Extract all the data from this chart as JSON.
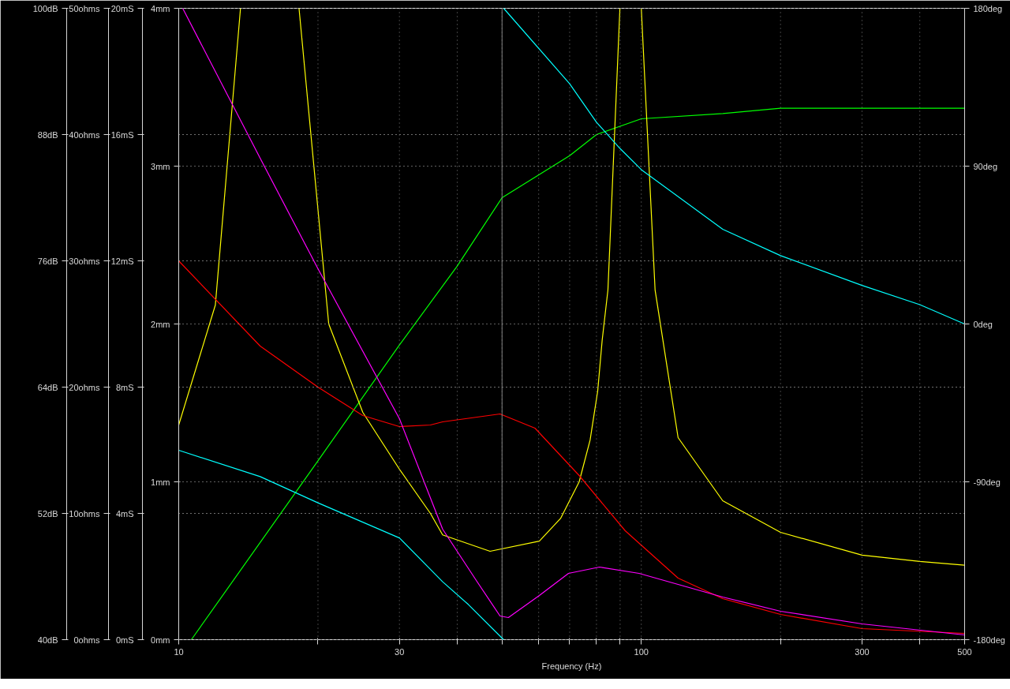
{
  "chart_data": [
    {
      "type": "line",
      "xlabel": "Frequency (Hz)",
      "log": "x",
      "grid": true,
      "marker": "none",
      "line_style": "solid",
      "xlim": [
        10,
        500
      ],
      "xticks": [
        10,
        {
          "value": 20,
          "label": null
        },
        30,
        {
          "value": 40,
          "label": null
        },
        {
          "value": 50,
          "label": null
        },
        {
          "value": 60,
          "label": null
        },
        {
          "value": 70,
          "label": null
        },
        {
          "value": 80,
          "label": null
        },
        {
          "value": 90,
          "label": null
        },
        100,
        {
          "value": 200,
          "label": null
        },
        300,
        {
          "value": 400,
          "label": null
        },
        500
      ],
      "ylim": [
        40,
        100
      ],
      "yticks": [
        {
          "value": 40,
          "label": "40dB"
        },
        {
          "value": 52,
          "label": "52dB"
        },
        {
          "value": 64,
          "label": "64dB"
        },
        {
          "value": 76,
          "label": "76dB"
        },
        {
          "value": 88,
          "label": "88dB"
        },
        {
          "value": 100,
          "label": "100dB"
        }
      ],
      "y2lim": [
        0,
        50
      ],
      "y2ticks": [
        {
          "value": 0,
          "label": "0ohms"
        },
        {
          "value": 10,
          "label": "10ohms"
        },
        {
          "value": 20,
          "label": "20ohms"
        },
        {
          "value": 30,
          "label": "30ohms"
        },
        {
          "value": 40,
          "label": "40ohms"
        },
        {
          "value": 50,
          "label": "50ohms"
        }
      ],
      "y3lim": [
        0,
        20
      ],
      "y3ticks": [
        {
          "value": 0,
          "label": "0mS"
        },
        {
          "value": 4,
          "label": "4mS"
        },
        {
          "value": 8,
          "label": "8mS"
        },
        {
          "value": 12,
          "label": "12mS"
        },
        {
          "value": 16,
          "label": "16mS"
        },
        {
          "value": 20,
          "label": "20mS"
        }
      ],
      "ref_lines": [
        {
          "axis": "x",
          "value": 50,
          "color": "#808080"
        }
      ],
      "series": [
        {
          "color": "#00ff00",
          "x": [
            10.65,
            20,
            30,
            40,
            50,
            70,
            80,
            100,
            150,
            200,
            300,
            500
          ],
          "values": [
            40,
            57,
            68,
            75.5,
            82,
            86,
            88,
            89.5,
            90,
            90.5,
            90.5,
            90.5
          ]
        },
        {
          "color": "#ffff00",
          "axis": "y2",
          "x": [
            10,
            12,
            13.6,
            15.5,
            18.2,
            21.1,
            25,
            30,
            35,
            37.2,
            47.1,
            60.2,
            66.9,
            73.4,
            77.5,
            80.5,
            82.3,
            84.7,
            89.9,
            95,
            100,
            107.1,
            120.1,
            150,
            200,
            300,
            400,
            500
          ],
          "values": [
            17,
            26.5,
            50,
            null,
            50,
            25,
            18,
            13.5,
            10,
            8.3,
            7,
            7.8,
            9.6,
            12.5,
            15.8,
            19.7,
            23.7,
            27.7,
            50,
            null,
            50,
            27.7,
            16,
            11,
            8.5,
            6.7,
            6.2,
            5.9
          ]
        },
        {
          "color": "#ff0000",
          "axis": "y3",
          "x": [
            10,
            15,
            20,
            25,
            30,
            35,
            37.2,
            49.5,
            58.9,
            73.4,
            92.3,
            120.1,
            150,
            200,
            300,
            500
          ],
          "values": [
            12,
            9.3,
            8,
            7.1,
            6.75,
            6.8,
            6.9,
            7.15,
            6.7,
            5.2,
            3.45,
            1.95,
            1.3,
            0.8,
            0.35,
            0.2
          ]
        }
      ]
    },
    {
      "type": "line",
      "log": "x",
      "grid": "y",
      "marker": "none",
      "line_style": "solid",
      "tick_labels": "y",
      "xlim": [
        10,
        500
      ],
      "ylim": [
        0,
        4
      ],
      "yticks": [
        {
          "value": 0,
          "label": "0mm"
        },
        {
          "value": 1,
          "label": "1mm"
        },
        {
          "value": 2,
          "label": "2mm"
        },
        {
          "value": 3,
          "label": "3mm"
        },
        {
          "value": 4,
          "label": "4mm"
        }
      ],
      "y2lim": [
        -180,
        180
      ],
      "y2ticks": [
        {
          "value": -180,
          "label": "-180deg"
        },
        {
          "value": -90,
          "label": "-90deg"
        },
        {
          "value": 0,
          "label": "0deg"
        },
        {
          "value": 90,
          "label": "90deg"
        },
        {
          "value": 180,
          "label": "180deg"
        }
      ],
      "series": [
        {
          "color": "#ff00ff",
          "x": [
            10.2,
            15,
            20,
            30,
            37.2,
            44.1,
            49.5,
            51.6,
            60.2,
            69.6,
            81.2,
            98.9,
            120.1,
            150,
            200,
            300,
            500
          ],
          "values": [
            4,
            3.05,
            2.35,
            1.4,
            0.7,
            0.37,
            0.15,
            0.14,
            0.28,
            0.42,
            0.46,
            0.42,
            0.35,
            0.27,
            0.18,
            0.1,
            0.03
          ]
        },
        {
          "color": "#00ffff",
          "axis": "y2",
          "x": [
            10,
            15,
            20,
            25,
            30,
            37.2,
            42.3,
            50.4
          ],
          "values": [
            -72,
            -87,
            -102,
            -113,
            -122,
            -147,
            -160,
            -180
          ]
        },
        {
          "color": "#00ffff",
          "axis": "y2",
          "x": [
            50.4,
            70,
            80,
            90,
            100,
            150,
            200,
            300,
            400,
            500
          ],
          "values": [
            180,
            137,
            115,
            100,
            88,
            54,
            39,
            22,
            11,
            0
          ]
        }
      ]
    }
  ]
}
